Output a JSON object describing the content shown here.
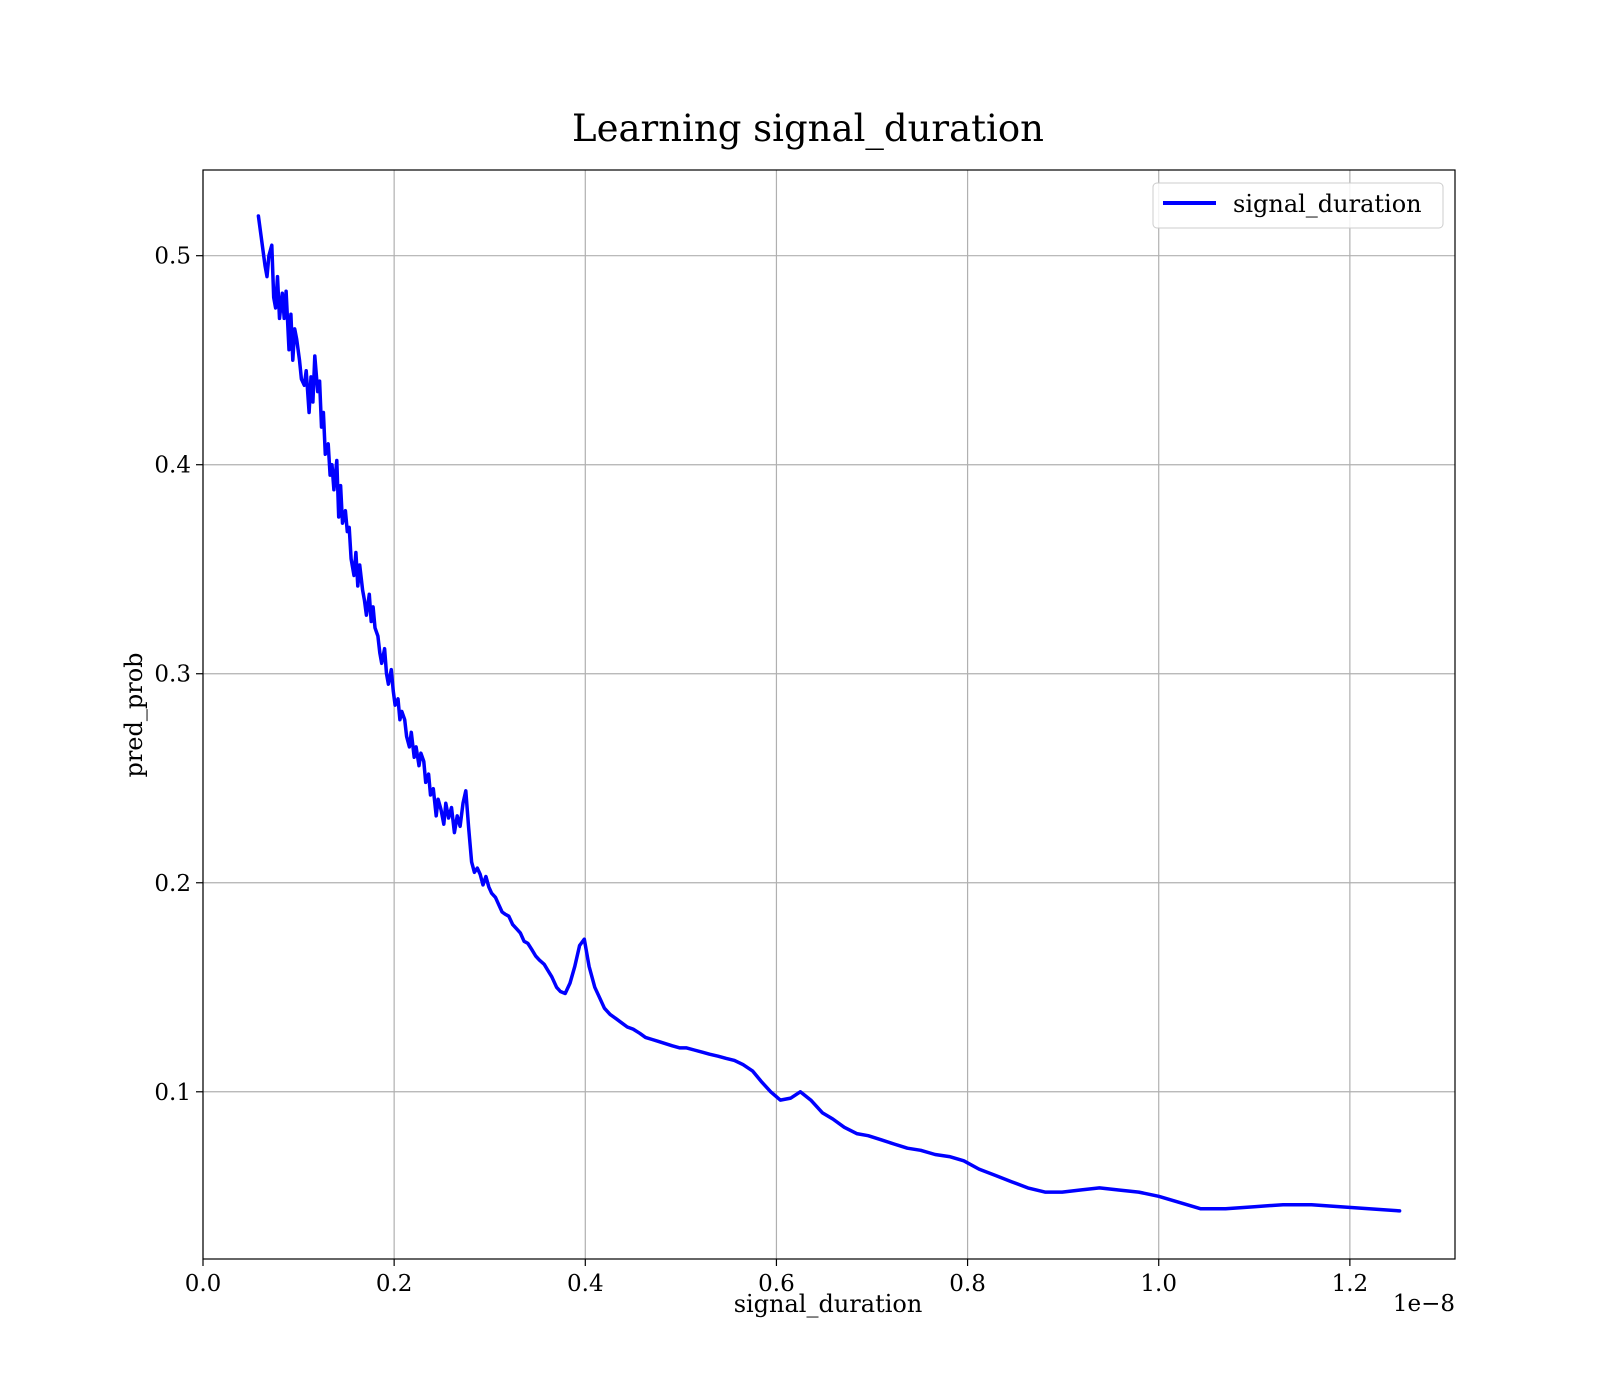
{
  "chart_data": {
    "type": "line",
    "title": "Learning signal_duration",
    "xlabel": "signal_duration",
    "ylabel": "pred_prob",
    "x_offset_label": "1e−8",
    "x_unit_scale": 1e-08,
    "xlim": [
      0.0,
      1.31
    ],
    "ylim": [
      0.02,
      0.541
    ],
    "x_ticks": [
      0.0,
      0.2,
      0.4,
      0.6,
      0.8,
      1.0,
      1.2
    ],
    "x_tick_labels": [
      "0.0",
      "0.2",
      "0.4",
      "0.6",
      "0.8",
      "1.0",
      "1.2"
    ],
    "y_ticks": [
      0.1,
      0.2,
      0.3,
      0.4,
      0.5
    ],
    "y_tick_labels": [
      "0.1",
      "0.2",
      "0.3",
      "0.4",
      "0.5"
    ],
    "grid": true,
    "legend_position": "top-right",
    "series": [
      {
        "name": "signal_duration",
        "color": "#0000ff",
        "x": [
          0.058,
          0.062,
          0.065,
          0.067,
          0.069,
          0.072,
          0.074,
          0.076,
          0.078,
          0.08,
          0.083,
          0.085,
          0.087,
          0.09,
          0.092,
          0.094,
          0.096,
          0.098,
          0.101,
          0.103,
          0.106,
          0.108,
          0.111,
          0.113,
          0.115,
          0.117,
          0.12,
          0.122,
          0.124,
          0.126,
          0.128,
          0.131,
          0.133,
          0.135,
          0.137,
          0.14,
          0.142,
          0.144,
          0.146,
          0.149,
          0.151,
          0.153,
          0.155,
          0.158,
          0.16,
          0.162,
          0.164,
          0.167,
          0.169,
          0.171,
          0.174,
          0.176,
          0.178,
          0.18,
          0.183,
          0.185,
          0.187,
          0.19,
          0.192,
          0.194,
          0.197,
          0.199,
          0.201,
          0.204,
          0.206,
          0.208,
          0.211,
          0.213,
          0.216,
          0.218,
          0.221,
          0.223,
          0.226,
          0.228,
          0.231,
          0.233,
          0.236,
          0.238,
          0.241,
          0.244,
          0.246,
          0.249,
          0.252,
          0.254,
          0.257,
          0.26,
          0.263,
          0.266,
          0.269,
          0.272,
          0.275,
          0.278,
          0.281,
          0.284,
          0.287,
          0.29,
          0.293,
          0.296,
          0.299,
          0.302,
          0.306,
          0.309,
          0.313,
          0.316,
          0.32,
          0.324,
          0.328,
          0.332,
          0.336,
          0.34,
          0.344,
          0.348,
          0.352,
          0.357,
          0.361,
          0.365,
          0.37,
          0.374,
          0.379,
          0.384,
          0.389,
          0.394,
          0.399,
          0.404,
          0.41,
          0.415,
          0.42,
          0.426,
          0.432,
          0.438,
          0.444,
          0.45,
          0.457,
          0.463,
          0.47,
          0.477,
          0.484,
          0.491,
          0.499,
          0.506,
          0.514,
          0.522,
          0.53,
          0.539,
          0.547,
          0.556,
          0.565,
          0.575,
          0.584,
          0.594,
          0.604,
          0.615,
          0.625,
          0.636,
          0.648,
          0.659,
          0.671,
          0.684,
          0.696,
          0.71,
          0.723,
          0.737,
          0.751,
          0.766,
          0.781,
          0.796,
          0.812,
          0.829,
          0.846,
          0.863,
          0.881,
          0.899,
          0.918,
          0.938,
          0.958,
          0.979,
          1.0,
          1.022,
          1.044,
          1.07,
          1.1,
          1.13,
          1.16,
          1.19,
          1.22,
          1.252
        ],
        "y": [
          0.519,
          0.505,
          0.495,
          0.49,
          0.5,
          0.505,
          0.48,
          0.475,
          0.49,
          0.47,
          0.482,
          0.47,
          0.483,
          0.455,
          0.472,
          0.45,
          0.465,
          0.46,
          0.45,
          0.441,
          0.438,
          0.445,
          0.425,
          0.442,
          0.43,
          0.452,
          0.435,
          0.44,
          0.418,
          0.425,
          0.405,
          0.41,
          0.395,
          0.4,
          0.388,
          0.402,
          0.375,
          0.39,
          0.372,
          0.378,
          0.368,
          0.37,
          0.355,
          0.347,
          0.358,
          0.342,
          0.352,
          0.34,
          0.335,
          0.328,
          0.338,
          0.325,
          0.332,
          0.322,
          0.318,
          0.31,
          0.305,
          0.312,
          0.3,
          0.295,
          0.302,
          0.292,
          0.285,
          0.288,
          0.278,
          0.282,
          0.278,
          0.27,
          0.265,
          0.272,
          0.26,
          0.265,
          0.256,
          0.262,
          0.258,
          0.248,
          0.252,
          0.242,
          0.245,
          0.232,
          0.24,
          0.235,
          0.228,
          0.238,
          0.231,
          0.236,
          0.224,
          0.232,
          0.227,
          0.238,
          0.244,
          0.226,
          0.21,
          0.205,
          0.207,
          0.204,
          0.199,
          0.203,
          0.198,
          0.195,
          0.193,
          0.19,
          0.186,
          0.185,
          0.184,
          0.18,
          0.178,
          0.176,
          0.172,
          0.171,
          0.168,
          0.165,
          0.163,
          0.161,
          0.158,
          0.155,
          0.15,
          0.148,
          0.147,
          0.152,
          0.16,
          0.17,
          0.173,
          0.16,
          0.15,
          0.145,
          0.14,
          0.137,
          0.135,
          0.133,
          0.131,
          0.13,
          0.128,
          0.126,
          0.125,
          0.124,
          0.123,
          0.122,
          0.121,
          0.121,
          0.12,
          0.119,
          0.118,
          0.117,
          0.116,
          0.115,
          0.113,
          0.11,
          0.105,
          0.1,
          0.096,
          0.097,
          0.1,
          0.096,
          0.09,
          0.087,
          0.083,
          0.08,
          0.079,
          0.077,
          0.075,
          0.073,
          0.072,
          0.07,
          0.069,
          0.067,
          0.063,
          0.06,
          0.057,
          0.054,
          0.052,
          0.052,
          0.053,
          0.054,
          0.053,
          0.052,
          0.05,
          0.047,
          0.044,
          0.044,
          0.045,
          0.046,
          0.046,
          0.045,
          0.044,
          0.043
        ]
      }
    ]
  }
}
